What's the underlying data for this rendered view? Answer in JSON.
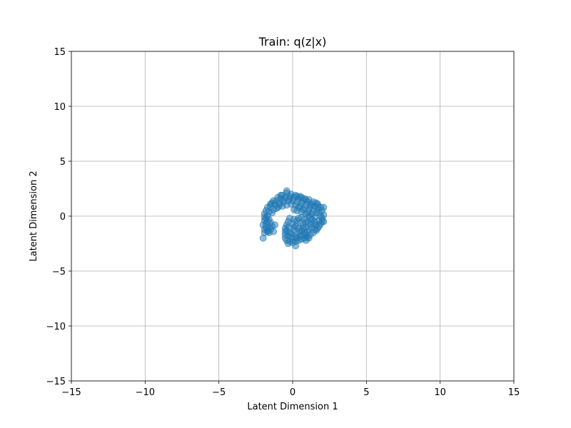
{
  "chart_data": {
    "type": "scatter",
    "title": "Train: q(z|x)",
    "xlabel": "Latent Dimension 1",
    "ylabel": "Latent Dimension 2",
    "xlim": [
      -15,
      15
    ],
    "ylim": [
      -15,
      15
    ],
    "xticks": [
      -15,
      -10,
      -5,
      0,
      5,
      10,
      15
    ],
    "yticks": [
      -15,
      -10,
      -5,
      0,
      5,
      10,
      15
    ],
    "xtick_labels": [
      "−15",
      "−10",
      "−5",
      "0",
      "5",
      "10",
      "15"
    ],
    "ytick_labels": [
      "−15",
      "−10",
      "−5",
      "0",
      "5",
      "10",
      "15"
    ],
    "grid": true,
    "marker_color": "#1f77b4",
    "marker_alpha": 0.5,
    "series": [
      {
        "points": [
          [
            -0.4,
            2.1
          ],
          [
            -0.1,
            2.0
          ],
          [
            0.2,
            1.9
          ],
          [
            0.5,
            1.8
          ],
          [
            0.8,
            1.6
          ],
          [
            1.1,
            1.5
          ],
          [
            1.4,
            1.3
          ],
          [
            1.7,
            1.1
          ],
          [
            1.9,
            0.8
          ],
          [
            2.0,
            0.5
          ],
          [
            -0.7,
            1.9
          ],
          [
            -1.0,
            1.7
          ],
          [
            -1.3,
            1.4
          ],
          [
            -1.5,
            1.1
          ],
          [
            -1.7,
            0.8
          ],
          [
            -1.8,
            0.5
          ],
          [
            -1.9,
            0.2
          ],
          [
            -1.9,
            -0.1
          ],
          [
            -1.9,
            -0.4
          ],
          [
            -1.8,
            -0.7
          ],
          [
            -1.8,
            -1.0
          ],
          [
            -1.7,
            -1.3
          ],
          [
            -1.6,
            -1.5
          ],
          [
            -1.9,
            -1.2
          ],
          [
            -2.0,
            -0.8
          ],
          [
            -2.0,
            -2.0
          ],
          [
            -1.5,
            0.9
          ],
          [
            -1.1,
            1.4
          ],
          [
            -0.8,
            1.6
          ],
          [
            -0.5,
            1.7
          ],
          [
            -0.2,
            1.8
          ],
          [
            0.1,
            1.7
          ],
          [
            0.4,
            1.6
          ],
          [
            0.7,
            1.4
          ],
          [
            1.0,
            1.3
          ],
          [
            1.3,
            1.1
          ],
          [
            1.5,
            0.9
          ],
          [
            1.7,
            0.6
          ],
          [
            1.8,
            0.3
          ],
          [
            1.9,
            0.0
          ],
          [
            -1.2,
            1.1
          ],
          [
            -0.9,
            1.2
          ],
          [
            -0.6,
            1.3
          ],
          [
            -0.3,
            1.4
          ],
          [
            0.0,
            1.4
          ],
          [
            0.3,
            1.3
          ],
          [
            0.6,
            1.2
          ],
          [
            0.9,
            1.0
          ],
          [
            1.2,
            0.8
          ],
          [
            1.4,
            0.5
          ],
          [
            -1.0,
            0.8
          ],
          [
            -0.7,
            0.9
          ],
          [
            -0.4,
            1.0
          ],
          [
            -0.1,
            1.1
          ],
          [
            0.2,
            1.0
          ],
          [
            0.5,
            0.9
          ],
          [
            0.8,
            0.7
          ],
          [
            1.1,
            0.5
          ],
          [
            1.3,
            0.2
          ],
          [
            1.5,
            -0.1
          ],
          [
            -1.3,
            0.6
          ],
          [
            -1.6,
            0.4
          ],
          [
            -1.7,
            0.0
          ],
          [
            -1.6,
            -0.3
          ],
          [
            -1.5,
            -0.6
          ],
          [
            -1.4,
            -0.9
          ],
          [
            -1.5,
            -1.2
          ],
          [
            -1.3,
            -1.4
          ],
          [
            -1.7,
            -0.5
          ],
          [
            -1.8,
            -0.2
          ],
          [
            0.1,
            0.6
          ],
          [
            0.3,
            0.5
          ],
          [
            0.6,
            0.4
          ],
          [
            0.9,
            0.2
          ],
          [
            1.1,
            0.0
          ],
          [
            1.3,
            -0.3
          ],
          [
            1.5,
            -0.5
          ],
          [
            1.6,
            -0.8
          ],
          [
            1.7,
            -1.1
          ],
          [
            1.8,
            -0.4
          ],
          [
            1.9,
            -0.7
          ],
          [
            2.0,
            -0.2
          ],
          [
            1.6,
            -1.3
          ],
          [
            1.4,
            -1.5
          ],
          [
            1.2,
            -1.7
          ],
          [
            1.0,
            -1.9
          ],
          [
            0.8,
            -2.0
          ],
          [
            0.6,
            -2.1
          ],
          [
            0.4,
            -2.2
          ],
          [
            0.2,
            -2.3
          ],
          [
            0.0,
            -2.4
          ],
          [
            -0.2,
            -2.3
          ],
          [
            -0.4,
            -2.2
          ],
          [
            -0.5,
            -2.0
          ],
          [
            -0.5,
            -1.7
          ],
          [
            -0.5,
            -1.4
          ],
          [
            -0.5,
            -1.1
          ],
          [
            -0.4,
            -0.8
          ],
          [
            -0.3,
            -0.5
          ],
          [
            -0.2,
            -0.2
          ],
          [
            0.1,
            -0.3
          ],
          [
            0.3,
            -0.4
          ],
          [
            0.5,
            -0.6
          ],
          [
            0.7,
            -0.8
          ],
          [
            0.9,
            -1.0
          ],
          [
            1.1,
            -1.2
          ],
          [
            1.3,
            -1.0
          ],
          [
            1.2,
            -0.7
          ],
          [
            1.0,
            -0.5
          ],
          [
            0.8,
            -0.3
          ],
          [
            0.0,
            -0.7
          ],
          [
            0.2,
            -0.9
          ],
          [
            0.4,
            -1.1
          ],
          [
            0.6,
            -1.3
          ],
          [
            0.8,
            -1.5
          ],
          [
            1.0,
            -1.4
          ],
          [
            0.1,
            -1.3
          ],
          [
            0.3,
            -1.6
          ],
          [
            0.5,
            -1.8
          ],
          [
            0.7,
            -1.7
          ],
          [
            -0.3,
            -1.0
          ],
          [
            -0.2,
            -1.5
          ],
          [
            -0.1,
            -1.9
          ],
          [
            0.0,
            -2.1
          ],
          [
            0.2,
            -1.9
          ],
          [
            0.2,
            -2.7
          ],
          [
            -0.3,
            -2.5
          ],
          [
            0.9,
            -2.2
          ],
          [
            1.1,
            -2.0
          ],
          [
            -0.4,
            2.3
          ],
          [
            2.1,
            0.8
          ],
          [
            2.1,
            0.1
          ],
          [
            2.1,
            -0.5
          ],
          [
            1.6,
            1.2
          ],
          [
            -1.4,
            1.2
          ],
          [
            -1.9,
            -1.5
          ],
          [
            -0.8,
            1.9
          ],
          [
            0.6,
            1.7
          ],
          [
            1.2,
            1.0
          ],
          [
            1.6,
            0.3
          ],
          [
            -0.6,
            1.5
          ],
          [
            -0.9,
            1.0
          ],
          [
            -1.1,
            0.7
          ],
          [
            -1.4,
            0.3
          ],
          [
            -1.2,
            -0.8
          ],
          [
            -1.6,
            -1.0
          ],
          [
            -1.7,
            -1.4
          ],
          [
            0.4,
            0.8
          ],
          [
            0.7,
            0.6
          ],
          [
            1.0,
            0.3
          ],
          [
            1.2,
            -0.1
          ],
          [
            1.4,
            -0.7
          ],
          [
            0.6,
            -0.1
          ],
          [
            0.4,
            -0.2
          ],
          [
            0.9,
            -0.6
          ],
          [
            1.5,
            -1.2
          ],
          [
            0.5,
            -1.4
          ],
          [
            0.7,
            -1.1
          ],
          [
            0.9,
            -1.7
          ],
          [
            0.3,
            -2.0
          ],
          [
            -0.1,
            -1.6
          ],
          [
            -0.3,
            -1.8
          ],
          [
            -0.4,
            -1.3
          ],
          [
            0.1,
            -1.0
          ],
          [
            1.7,
            0.9
          ],
          [
            1.8,
            -0.9
          ],
          [
            2.0,
            -0.5
          ],
          [
            -0.2,
            1.6
          ],
          [
            0.3,
            1.8
          ],
          [
            0.9,
            1.5
          ]
        ]
      }
    ]
  }
}
